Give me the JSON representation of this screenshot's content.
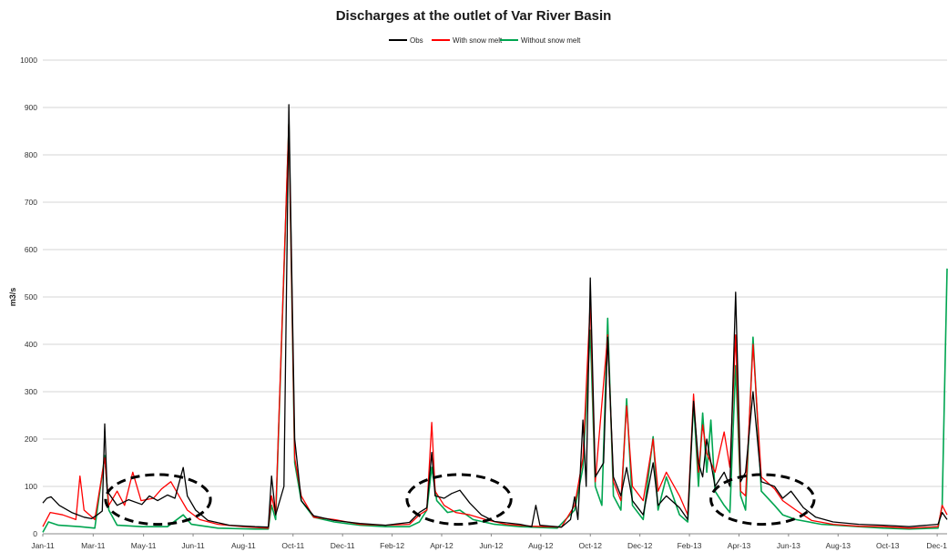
{
  "chart_data": {
    "type": "line",
    "title": "Discharges at the outlet of Var River Basin",
    "ylabel": "m3/s",
    "xlabel": "",
    "ylim": [
      0,
      1000
    ],
    "y_ticks": [
      0,
      100,
      200,
      300,
      400,
      500,
      600,
      700,
      800,
      900,
      1000
    ],
    "x_range": [
      "2011-01-01",
      "2013-12-31"
    ],
    "x_tick_labels": [
      "Jan-11",
      "Mar-11",
      "May-11",
      "Jun-11",
      "Aug-11",
      "Oct-11",
      "Dec-11",
      "Feb-12",
      "Apr-12",
      "Jun-12",
      "Aug-12",
      "Oct-12",
      "Dec-12",
      "Feb-13",
      "Apr-13",
      "Jun-13",
      "Aug-13",
      "Oct-13",
      "Dec-1"
    ],
    "x_tick_dates": [
      "2011-01-01",
      "2011-03-03",
      "2011-05-03",
      "2011-07-02",
      "2011-09-01",
      "2011-10-31",
      "2011-12-30",
      "2012-02-28",
      "2012-04-28",
      "2012-06-27",
      "2012-08-26",
      "2012-10-25",
      "2012-12-24",
      "2013-02-22",
      "2013-04-23",
      "2013-06-22",
      "2013-08-21",
      "2013-10-20",
      "2013-12-19"
    ],
    "grid": true,
    "legend_position": "top-center",
    "series": [
      {
        "name": "Obs",
        "color": "#000000",
        "points": [
          [
            "2011-01-01",
            65
          ],
          [
            "2011-01-06",
            75
          ],
          [
            "2011-01-11",
            78
          ],
          [
            "2011-01-21",
            60
          ],
          [
            "2011-02-05",
            45
          ],
          [
            "2011-02-20",
            35
          ],
          [
            "2011-03-01",
            32
          ],
          [
            "2011-03-08",
            40
          ],
          [
            "2011-03-14",
            48
          ],
          [
            "2011-03-17",
            232
          ],
          [
            "2011-03-20",
            90
          ],
          [
            "2011-04-01",
            60
          ],
          [
            "2011-04-15",
            72
          ],
          [
            "2011-05-01",
            62
          ],
          [
            "2011-05-10",
            80
          ],
          [
            "2011-05-20",
            70
          ],
          [
            "2011-06-01",
            82
          ],
          [
            "2011-06-10",
            75
          ],
          [
            "2011-06-20",
            140
          ],
          [
            "2011-06-25",
            80
          ],
          [
            "2011-07-05",
            50
          ],
          [
            "2011-07-20",
            28
          ],
          [
            "2011-08-15",
            18
          ],
          [
            "2011-09-15",
            15
          ],
          [
            "2011-10-01",
            14
          ],
          [
            "2011-10-05",
            122
          ],
          [
            "2011-10-10",
            40
          ],
          [
            "2011-10-20",
            100
          ],
          [
            "2011-10-26",
            906
          ],
          [
            "2011-11-02",
            200
          ],
          [
            "2011-11-10",
            70
          ],
          [
            "2011-11-25",
            38
          ],
          [
            "2011-12-20",
            28
          ],
          [
            "2012-01-20",
            22
          ],
          [
            "2012-02-20",
            18
          ],
          [
            "2012-03-20",
            24
          ],
          [
            "2012-04-01",
            45
          ],
          [
            "2012-04-10",
            55
          ],
          [
            "2012-04-16",
            172
          ],
          [
            "2012-04-20",
            80
          ],
          [
            "2012-05-01",
            75
          ],
          [
            "2012-05-10",
            85
          ],
          [
            "2012-05-20",
            92
          ],
          [
            "2012-06-01",
            65
          ],
          [
            "2012-06-15",
            40
          ],
          [
            "2012-07-01",
            26
          ],
          [
            "2012-08-01",
            20
          ],
          [
            "2012-08-15",
            15
          ],
          [
            "2012-08-20",
            60
          ],
          [
            "2012-08-25",
            18
          ],
          [
            "2012-09-20",
            14
          ],
          [
            "2012-10-01",
            30
          ],
          [
            "2012-10-06",
            78
          ],
          [
            "2012-10-10",
            30
          ],
          [
            "2012-10-16",
            240
          ],
          [
            "2012-10-20",
            100
          ],
          [
            "2012-10-25",
            540
          ],
          [
            "2012-10-31",
            120
          ],
          [
            "2012-11-10",
            150
          ],
          [
            "2012-11-15",
            415
          ],
          [
            "2012-11-22",
            120
          ],
          [
            "2012-12-01",
            80
          ],
          [
            "2012-12-08",
            140
          ],
          [
            "2012-12-15",
            70
          ],
          [
            "2012-12-28",
            40
          ],
          [
            "2013-01-09",
            150
          ],
          [
            "2013-01-15",
            60
          ],
          [
            "2013-01-25",
            80
          ],
          [
            "2013-02-10",
            55
          ],
          [
            "2013-02-20",
            30
          ],
          [
            "2013-02-27",
            280
          ],
          [
            "2013-03-05",
            150
          ],
          [
            "2013-03-10",
            120
          ],
          [
            "2013-03-15",
            200
          ],
          [
            "2013-03-25",
            100
          ],
          [
            "2013-04-05",
            130
          ],
          [
            "2013-04-12",
            100
          ],
          [
            "2013-04-19",
            510
          ],
          [
            "2013-04-25",
            110
          ],
          [
            "2013-05-01",
            130
          ],
          [
            "2013-05-10",
            300
          ],
          [
            "2013-05-20",
            110
          ],
          [
            "2013-06-05",
            100
          ],
          [
            "2013-06-15",
            75
          ],
          [
            "2013-06-25",
            90
          ],
          [
            "2013-07-10",
            55
          ],
          [
            "2013-07-25",
            35
          ],
          [
            "2013-08-15",
            25
          ],
          [
            "2013-09-15",
            20
          ],
          [
            "2013-10-15",
            18
          ],
          [
            "2013-11-15",
            15
          ],
          [
            "2013-12-20",
            20
          ],
          [
            "2013-12-25",
            45
          ],
          [
            "2013-12-31",
            30
          ]
        ]
      },
      {
        "name": "With snow melt",
        "color": "#ff0000",
        "points": [
          [
            "2011-01-01",
            15
          ],
          [
            "2011-01-10",
            45
          ],
          [
            "2011-01-25",
            40
          ],
          [
            "2011-02-10",
            30
          ],
          [
            "2011-02-15",
            122
          ],
          [
            "2011-02-20",
            50
          ],
          [
            "2011-03-05",
            30
          ],
          [
            "2011-03-17",
            160
          ],
          [
            "2011-03-22",
            60
          ],
          [
            "2011-04-01",
            90
          ],
          [
            "2011-04-10",
            60
          ],
          [
            "2011-04-20",
            130
          ],
          [
            "2011-04-30",
            70
          ],
          [
            "2011-05-15",
            75
          ],
          [
            "2011-05-25",
            95
          ],
          [
            "2011-06-05",
            110
          ],
          [
            "2011-06-15",
            80
          ],
          [
            "2011-06-25",
            50
          ],
          [
            "2011-07-10",
            30
          ],
          [
            "2011-08-01",
            20
          ],
          [
            "2011-09-01",
            15
          ],
          [
            "2011-10-01",
            12
          ],
          [
            "2011-10-05",
            80
          ],
          [
            "2011-10-10",
            40
          ],
          [
            "2011-10-26",
            870
          ],
          [
            "2011-11-02",
            160
          ],
          [
            "2011-11-10",
            80
          ],
          [
            "2011-11-25",
            35
          ],
          [
            "2011-12-20",
            30
          ],
          [
            "2012-01-20",
            20
          ],
          [
            "2012-02-20",
            18
          ],
          [
            "2012-03-20",
            20
          ],
          [
            "2012-04-01",
            40
          ],
          [
            "2012-04-10",
            50
          ],
          [
            "2012-04-16",
            235
          ],
          [
            "2012-04-20",
            90
          ],
          [
            "2012-05-01",
            60
          ],
          [
            "2012-05-15",
            45
          ],
          [
            "2012-06-01",
            40
          ],
          [
            "2012-06-20",
            30
          ],
          [
            "2012-07-15",
            20
          ],
          [
            "2012-08-15",
            16
          ],
          [
            "2012-09-20",
            14
          ],
          [
            "2012-10-06",
            60
          ],
          [
            "2012-10-16",
            160
          ],
          [
            "2012-10-25",
            490
          ],
          [
            "2012-10-31",
            110
          ],
          [
            "2012-11-15",
            420
          ],
          [
            "2012-11-22",
            110
          ],
          [
            "2012-12-01",
            70
          ],
          [
            "2012-12-08",
            270
          ],
          [
            "2012-12-15",
            100
          ],
          [
            "2012-12-28",
            70
          ],
          [
            "2013-01-09",
            200
          ],
          [
            "2013-01-15",
            90
          ],
          [
            "2013-01-25",
            130
          ],
          [
            "2013-02-10",
            80
          ],
          [
            "2013-02-20",
            40
          ],
          [
            "2013-02-27",
            295
          ],
          [
            "2013-03-05",
            130
          ],
          [
            "2013-03-10",
            230
          ],
          [
            "2013-03-15",
            170
          ],
          [
            "2013-03-25",
            130
          ],
          [
            "2013-04-05",
            215
          ],
          [
            "2013-04-12",
            140
          ],
          [
            "2013-04-19",
            420
          ],
          [
            "2013-04-25",
            90
          ],
          [
            "2013-05-01",
            80
          ],
          [
            "2013-05-10",
            400
          ],
          [
            "2013-05-20",
            120
          ],
          [
            "2013-06-05",
            95
          ],
          [
            "2013-06-15",
            70
          ],
          [
            "2013-07-01",
            50
          ],
          [
            "2013-07-20",
            28
          ],
          [
            "2013-08-15",
            20
          ],
          [
            "2013-09-15",
            16
          ],
          [
            "2013-10-15",
            15
          ],
          [
            "2013-11-15",
            12
          ],
          [
            "2013-12-20",
            15
          ],
          [
            "2013-12-25",
            60
          ],
          [
            "2013-12-31",
            40
          ]
        ]
      },
      {
        "name": "Without snow melt",
        "color": "#00a550",
        "points": [
          [
            "2011-01-01",
            3
          ],
          [
            "2011-01-08",
            25
          ],
          [
            "2011-01-20",
            18
          ],
          [
            "2011-02-15",
            15
          ],
          [
            "2011-03-05",
            12
          ],
          [
            "2011-03-17",
            165
          ],
          [
            "2011-03-22",
            50
          ],
          [
            "2011-04-01",
            18
          ],
          [
            "2011-05-01",
            15
          ],
          [
            "2011-06-01",
            15
          ],
          [
            "2011-06-20",
            40
          ],
          [
            "2011-06-30",
            20
          ],
          [
            "2011-08-01",
            12
          ],
          [
            "2011-09-15",
            10
          ],
          [
            "2011-10-01",
            10
          ],
          [
            "2011-10-05",
            60
          ],
          [
            "2011-10-10",
            30
          ],
          [
            "2011-10-26",
            865
          ],
          [
            "2011-11-02",
            150
          ],
          [
            "2011-11-10",
            70
          ],
          [
            "2011-11-25",
            35
          ],
          [
            "2011-12-20",
            25
          ],
          [
            "2012-01-20",
            18
          ],
          [
            "2012-02-20",
            15
          ],
          [
            "2012-03-20",
            15
          ],
          [
            "2012-04-01",
            25
          ],
          [
            "2012-04-10",
            50
          ],
          [
            "2012-04-16",
            140
          ],
          [
            "2012-04-22",
            70
          ],
          [
            "2012-05-05",
            45
          ],
          [
            "2012-05-20",
            50
          ],
          [
            "2012-06-05",
            30
          ],
          [
            "2012-07-01",
            20
          ],
          [
            "2012-08-01",
            15
          ],
          [
            "2012-09-15",
            12
          ],
          [
            "2012-10-06",
            50
          ],
          [
            "2012-10-16",
            140
          ],
          [
            "2012-10-25",
            430
          ],
          [
            "2012-10-31",
            100
          ],
          [
            "2012-11-08",
            60
          ],
          [
            "2012-11-15",
            455
          ],
          [
            "2012-11-22",
            80
          ],
          [
            "2012-12-01",
            50
          ],
          [
            "2012-12-08",
            285
          ],
          [
            "2012-12-15",
            60
          ],
          [
            "2012-12-28",
            30
          ],
          [
            "2013-01-09",
            205
          ],
          [
            "2013-01-15",
            50
          ],
          [
            "2013-01-25",
            120
          ],
          [
            "2013-02-10",
            40
          ],
          [
            "2013-02-20",
            25
          ],
          [
            "2013-02-27",
            280
          ],
          [
            "2013-03-05",
            100
          ],
          [
            "2013-03-10",
            255
          ],
          [
            "2013-03-15",
            130
          ],
          [
            "2013-03-20",
            240
          ],
          [
            "2013-03-25",
            90
          ],
          [
            "2013-04-05",
            60
          ],
          [
            "2013-04-12",
            45
          ],
          [
            "2013-04-19",
            355
          ],
          [
            "2013-04-25",
            80
          ],
          [
            "2013-05-01",
            50
          ],
          [
            "2013-05-10",
            415
          ],
          [
            "2013-05-20",
            90
          ],
          [
            "2013-06-05",
            60
          ],
          [
            "2013-06-15",
            40
          ],
          [
            "2013-07-01",
            30
          ],
          [
            "2013-08-01",
            20
          ],
          [
            "2013-09-15",
            15
          ],
          [
            "2013-10-15",
            12
          ],
          [
            "2013-11-15",
            10
          ],
          [
            "2013-12-20",
            12
          ],
          [
            "2013-12-25",
            60
          ],
          [
            "2013-12-31",
            560
          ]
        ]
      }
    ],
    "highlights": [
      {
        "shape": "dashed-ellipse",
        "x_from": "2011-03-18",
        "x_to": "2011-07-23",
        "y_from": 20,
        "y_to": 125
      },
      {
        "shape": "dashed-ellipse",
        "x_from": "2012-03-17",
        "x_to": "2012-07-21",
        "y_from": 20,
        "y_to": 125
      },
      {
        "shape": "dashed-ellipse",
        "x_from": "2013-03-20",
        "x_to": "2013-07-23",
        "y_from": 20,
        "y_to": 125
      }
    ]
  }
}
